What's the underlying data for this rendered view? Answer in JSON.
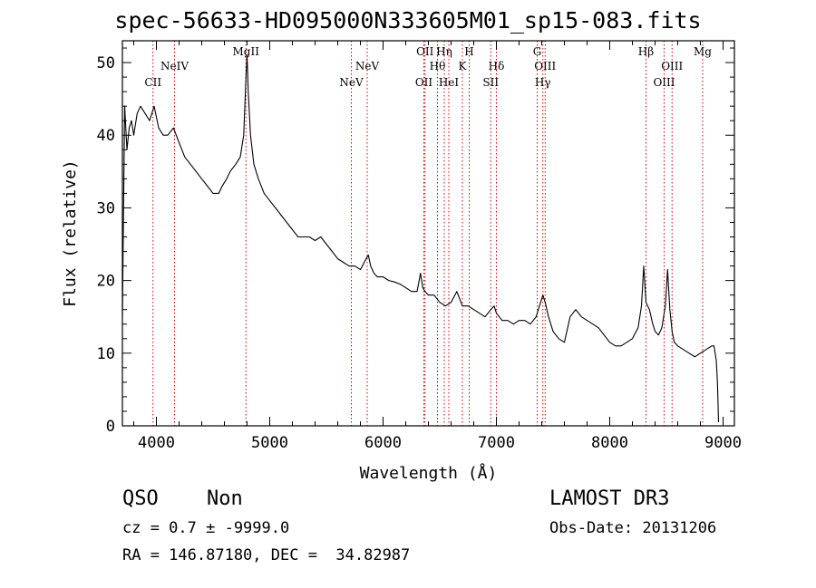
{
  "chart_data": {
    "type": "line",
    "title": "spec-56633-HD095000N333605M01_sp15-083.fits",
    "xlabel": "Wavelength (Å)",
    "ylabel": "Flux (relative)",
    "xlim": [
      3700,
      9100
    ],
    "ylim": [
      0,
      53
    ],
    "xticks": [
      "4000",
      "5000",
      "6000",
      "7000",
      "8000",
      "9000"
    ],
    "yticks": [
      "0",
      "10",
      "20",
      "30",
      "40",
      "50"
    ],
    "grid": false,
    "series": [
      {
        "x": [
          3700,
          3720,
          3740,
          3760,
          3780,
          3800,
          3830,
          3860,
          3900,
          3940,
          3980,
          4020,
          4060,
          4100,
          4150,
          4200,
          4250,
          4300,
          4350,
          4400,
          4450,
          4500,
          4550,
          4580,
          4620,
          4650,
          4700,
          4740,
          4770,
          4790,
          4800,
          4810,
          4830,
          4860,
          4900,
          4950,
          5000,
          5050,
          5100,
          5150,
          5200,
          5250,
          5300,
          5350,
          5400,
          5450,
          5500,
          5550,
          5600,
          5650,
          5700,
          5750,
          5800,
          5850,
          5870,
          5890,
          5920,
          5950,
          6000,
          6050,
          6100,
          6150,
          6200,
          6250,
          6300,
          6330,
          6350,
          6370,
          6400,
          6450,
          6500,
          6550,
          6600,
          6650,
          6700,
          6750,
          6800,
          6850,
          6900,
          6950,
          6980,
          7000,
          7050,
          7100,
          7150,
          7200,
          7250,
          7300,
          7350,
          7380,
          7410,
          7430,
          7460,
          7500,
          7550,
          7600,
          7650,
          7700,
          7750,
          7800,
          7850,
          7900,
          7950,
          8000,
          8050,
          8100,
          8150,
          8200,
          8250,
          8280,
          8300,
          8320,
          8350,
          8380,
          8400,
          8430,
          8460,
          8490,
          8510,
          8530,
          8550,
          8570,
          8600,
          8650,
          8700,
          8750,
          8800,
          8850,
          8900,
          8920,
          8940,
          8950,
          8960
        ],
        "y": [
          15,
          44,
          38,
          41,
          42,
          40,
          43,
          44,
          43,
          42,
          44,
          41,
          40,
          40,
          41,
          39,
          37,
          36,
          35,
          34,
          33,
          32,
          32,
          33,
          34,
          35,
          36,
          37,
          40,
          48,
          51,
          46,
          40,
          36,
          34,
          32,
          31,
          30,
          29,
          28,
          27,
          26,
          26,
          26,
          25.5,
          26,
          25,
          24,
          23,
          22.5,
          22,
          22,
          21.5,
          23,
          23.5,
          22,
          21,
          20.5,
          20.5,
          20,
          19.8,
          19.5,
          19,
          18.5,
          18.5,
          21,
          19,
          18.5,
          18,
          18,
          17,
          16.5,
          17,
          18.5,
          16.5,
          16.5,
          16,
          15.5,
          15,
          16,
          16.5,
          15.5,
          14.5,
          14.5,
          14,
          14.5,
          14.5,
          14,
          15,
          16.5,
          18,
          17,
          15,
          13,
          12,
          11.5,
          15,
          16,
          15,
          14.5,
          14,
          13.5,
          12.5,
          11.5,
          11,
          11,
          11.5,
          12,
          13.5,
          16.5,
          22,
          17,
          16,
          14,
          13,
          12.5,
          13.5,
          16.5,
          21.5,
          16,
          13,
          11.5,
          11,
          10.5,
          10,
          9.5,
          10,
          10.5,
          11,
          11,
          9,
          6,
          0.5
        ]
      }
    ],
    "lines": [
      {
        "label": "CII",
        "x": 3970,
        "row": 2
      },
      {
        "label": "NeIV",
        "x": 4160,
        "row": 1
      },
      {
        "label": "MgII",
        "x": 4790,
        "row": 0
      },
      {
        "label": "NeV",
        "x": 5720,
        "row": 2
      },
      {
        "label": "NeV",
        "x": 5860,
        "row": 1
      },
      {
        "label": "OII",
        "x": 6360,
        "row": 2
      },
      {
        "label": "OII",
        "x": 6370,
        "row": 0
      },
      {
        "label": "Hθ",
        "x": 6480,
        "row": 1
      },
      {
        "label": "Hη",
        "x": 6540,
        "row": 0
      },
      {
        "label": "HeI",
        "x": 6580,
        "row": 2
      },
      {
        "label": "K",
        "x": 6700,
        "row": 1
      },
      {
        "label": "H",
        "x": 6760,
        "row": 0
      },
      {
        "label": "Hδ",
        "x": 7000,
        "row": 1
      },
      {
        "label": "SII",
        "x": 6950,
        "row": 2
      },
      {
        "label": "G",
        "x": 7360,
        "row": 0
      },
      {
        "label": "OIII",
        "x": 7430,
        "row": 1
      },
      {
        "label": "Hγ",
        "x": 7410,
        "row": 2
      },
      {
        "label": "Hβ",
        "x": 8320,
        "row": 0
      },
      {
        "label": "OIII",
        "x": 8480,
        "row": 2
      },
      {
        "label": "OIII",
        "x": 8550,
        "row": 1
      },
      {
        "label": "Mg",
        "x": 8820,
        "row": 0
      }
    ]
  },
  "info": {
    "class": "QSO",
    "subclass": "Non",
    "survey": "LAMOST DR3",
    "cz": "cz = 0.7 ± -9999.0",
    "obs_date": "Obs-Date: 20131206",
    "radec": "RA = 146.87180, DEC =  34.82987"
  },
  "colors": {
    "axis": "#000000",
    "spectrum": "#000000",
    "line_markers": "#cc0000"
  }
}
